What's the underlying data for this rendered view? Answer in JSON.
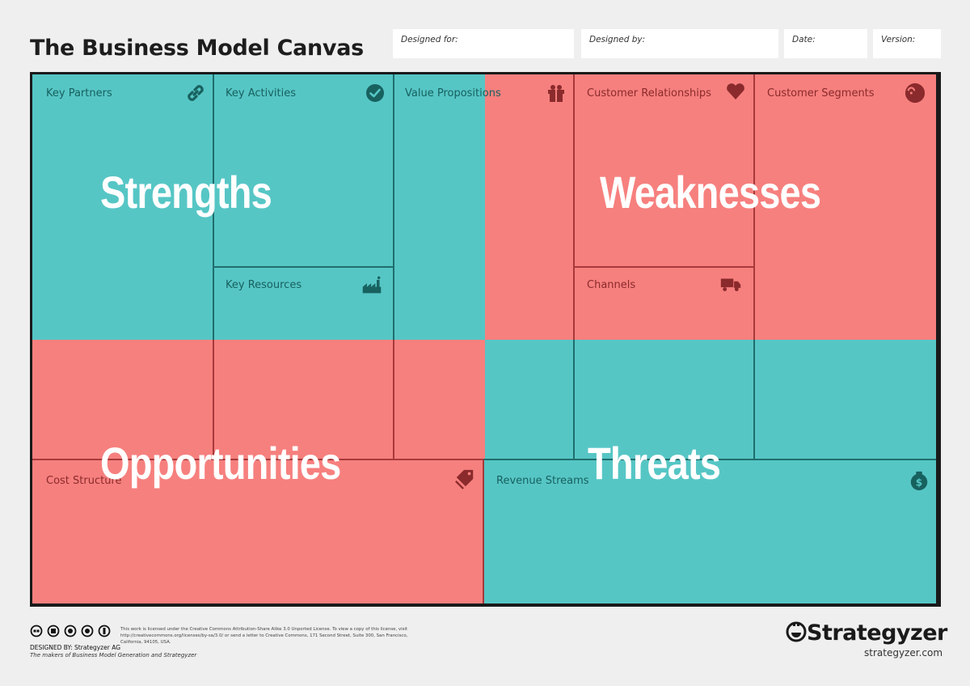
{
  "header": {
    "title": "The Business Model Canvas",
    "designed_for": "Designed for:",
    "designed_by": "Designed by:",
    "date": "Date:",
    "version": "Version:"
  },
  "blocks": {
    "key_partners": "Key Partners",
    "key_activities": "Key Activities",
    "key_resources": "Key Resources",
    "value_propositions": "Value Propositions",
    "customer_relationships": "Customer Relationships",
    "channels": "Channels",
    "customer_segments": "Customer Segments",
    "cost_structure": "Cost Structure",
    "revenue_streams": "Revenue Streams"
  },
  "swot": {
    "strengths": "Strengths",
    "weaknesses": "Weaknesses",
    "opportunities": "Opportunities",
    "threats": "Threats"
  },
  "icons": {
    "key_partners": "link-icon",
    "key_activities": "check-circle-icon",
    "key_resources": "factory-icon",
    "value_propositions": "gift-icon",
    "customer_relationships": "heart-icon",
    "channels": "truck-icon",
    "customer_segments": "head-icon",
    "cost_structure": "price-tag-icon",
    "revenue_streams": "money-bag-icon"
  },
  "colors": {
    "teal": "#56c6c5",
    "red": "#f6807e",
    "frame": "#1a1a1a"
  },
  "footer": {
    "license_text": "This work is licensed under the Creative Commons Attribution-Share Alike 3.0 Unported License. To view a copy of this license, visit http://creativecommons.org/licenses/by-sa/3.0/ or send a letter to Creative Commons, 171 Second Street, Suite 300, San Francisco, California, 94105, USA.",
    "designed_by": "DESIGNED BY: Strategyzer AG",
    "makers": "The makers of Business Model Generation and Strategyzer",
    "brand": "Strategyzer",
    "brand_url": "strategyzer.com"
  }
}
